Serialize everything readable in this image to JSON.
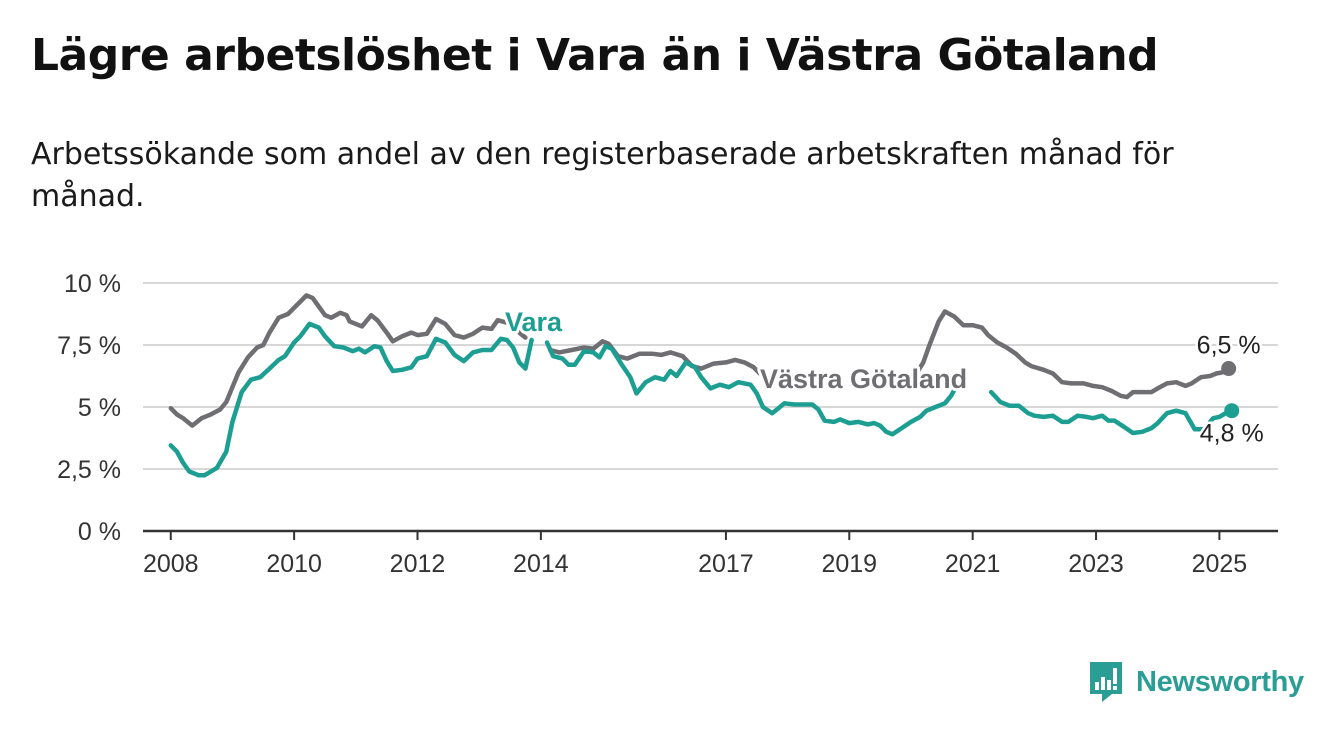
{
  "header": {
    "title": "Lägre arbetslöshet i Vara än i Västra Götaland",
    "subtitle": "Arbetssökande som andel av den registerbaserade arbetskraften månad för månad."
  },
  "logo": {
    "icon": "newsworthy-logo-icon",
    "text": "Newsworthy",
    "color": "#2a9d94"
  },
  "chart_data": {
    "type": "line",
    "title": "Lägre arbetslöshet i Vara än i Västra Götaland",
    "subtitle": "Arbetssökande som andel av den registerbaserade arbetskraften månad för månad.",
    "xlabel": "",
    "ylabel": "",
    "xlim": [
      2007.55,
      2025.95
    ],
    "ylim": [
      0,
      10
    ],
    "grid": true,
    "legend": "direct-labels",
    "y_ticks": [
      {
        "value": 0,
        "label": "0 %"
      },
      {
        "value": 2.5,
        "label": "2,5 %"
      },
      {
        "value": 5,
        "label": "5 %"
      },
      {
        "value": 7.5,
        "label": "7,5 %"
      },
      {
        "value": 10,
        "label": "10 %"
      }
    ],
    "x_ticks": [
      {
        "value": 2008,
        "label": "2008"
      },
      {
        "value": 2010,
        "label": "2010"
      },
      {
        "value": 2012,
        "label": "2012"
      },
      {
        "value": 2014,
        "label": "2014"
      },
      {
        "value": 2017,
        "label": "2017"
      },
      {
        "value": 2019,
        "label": "2019"
      },
      {
        "value": 2021,
        "label": "2021"
      },
      {
        "value": 2023,
        "label": "2023"
      },
      {
        "value": 2025,
        "label": "2025"
      }
    ],
    "series": [
      {
        "name": "Västra Götaland",
        "color": "#6f6e73",
        "end_label": "6,5 %",
        "points": [
          [
            2008.0,
            4.95
          ],
          [
            2008.1,
            4.7
          ],
          [
            2008.2,
            4.55
          ],
          [
            2008.35,
            4.25
          ],
          [
            2008.5,
            4.55
          ],
          [
            2008.65,
            4.7
          ],
          [
            2008.8,
            4.9
          ],
          [
            2008.9,
            5.2
          ],
          [
            2009.0,
            5.8
          ],
          [
            2009.1,
            6.4
          ],
          [
            2009.25,
            7.0
          ],
          [
            2009.4,
            7.4
          ],
          [
            2009.5,
            7.5
          ],
          [
            2009.6,
            8.0
          ],
          [
            2009.75,
            8.6
          ],
          [
            2009.9,
            8.75
          ],
          [
            2010.0,
            9.0
          ],
          [
            2010.1,
            9.25
          ],
          [
            2010.2,
            9.5
          ],
          [
            2010.3,
            9.4
          ],
          [
            2010.4,
            9.05
          ],
          [
            2010.5,
            8.7
          ],
          [
            2010.6,
            8.6
          ],
          [
            2010.75,
            8.8
          ],
          [
            2010.85,
            8.7
          ],
          [
            2010.9,
            8.45
          ],
          [
            2011.0,
            8.35
          ],
          [
            2011.1,
            8.25
          ],
          [
            2011.25,
            8.7
          ],
          [
            2011.35,
            8.5
          ],
          [
            2011.5,
            8.0
          ],
          [
            2011.6,
            7.65
          ],
          [
            2011.75,
            7.85
          ],
          [
            2011.9,
            8.0
          ],
          [
            2012.0,
            7.9
          ],
          [
            2012.15,
            7.95
          ],
          [
            2012.3,
            8.55
          ],
          [
            2012.45,
            8.35
          ],
          [
            2012.6,
            7.9
          ],
          [
            2012.75,
            7.8
          ],
          [
            2012.9,
            7.95
          ],
          [
            2013.05,
            8.2
          ],
          [
            2013.2,
            8.15
          ],
          [
            2013.3,
            8.5
          ],
          [
            2013.45,
            8.4
          ],
          [
            2013.55,
            8.3
          ],
          [
            2013.65,
            8.0
          ],
          [
            2013.75,
            7.8
          ],
          null,
          [
            2014.15,
            7.3
          ],
          [
            2014.3,
            7.2
          ],
          [
            2014.5,
            7.3
          ],
          [
            2014.7,
            7.4
          ],
          [
            2014.85,
            7.35
          ],
          [
            2015.0,
            7.65
          ],
          [
            2015.1,
            7.55
          ],
          [
            2015.25,
            7.05
          ],
          [
            2015.4,
            6.95
          ],
          [
            2015.6,
            7.15
          ],
          [
            2015.8,
            7.15
          ],
          [
            2015.95,
            7.1
          ],
          [
            2016.1,
            7.2
          ],
          [
            2016.3,
            7.05
          ],
          [
            2016.45,
            6.65
          ],
          [
            2016.6,
            6.55
          ],
          [
            2016.8,
            6.75
          ],
          [
            2017.0,
            6.8
          ],
          [
            2017.15,
            6.9
          ],
          [
            2017.3,
            6.8
          ],
          [
            2017.45,
            6.6
          ],
          [
            2017.55,
            6.35
          ],
          null,
          [
            2020.05,
            6.2
          ],
          [
            2020.2,
            6.8
          ],
          [
            2020.3,
            7.5
          ],
          [
            2020.45,
            8.45
          ],
          [
            2020.55,
            8.85
          ],
          [
            2020.7,
            8.65
          ],
          [
            2020.85,
            8.3
          ],
          [
            2021.0,
            8.3
          ],
          [
            2021.15,
            8.2
          ],
          [
            2021.25,
            7.9
          ],
          [
            2021.4,
            7.6
          ],
          [
            2021.55,
            7.4
          ],
          [
            2021.7,
            7.15
          ],
          [
            2021.85,
            6.8
          ],
          [
            2021.95,
            6.65
          ],
          [
            2022.15,
            6.5
          ],
          [
            2022.3,
            6.35
          ],
          [
            2022.45,
            6.0
          ],
          [
            2022.6,
            5.95
          ],
          [
            2022.8,
            5.95
          ],
          [
            2022.95,
            5.85
          ],
          [
            2023.1,
            5.8
          ],
          [
            2023.25,
            5.65
          ],
          [
            2023.4,
            5.45
          ],
          [
            2023.5,
            5.4
          ],
          [
            2023.6,
            5.6
          ],
          [
            2023.75,
            5.6
          ],
          [
            2023.9,
            5.6
          ],
          [
            2024.0,
            5.75
          ],
          [
            2024.15,
            5.95
          ],
          [
            2024.3,
            6.0
          ],
          [
            2024.45,
            5.85
          ],
          [
            2024.55,
            5.95
          ],
          [
            2024.7,
            6.2
          ],
          [
            2024.85,
            6.25
          ],
          [
            2024.95,
            6.35
          ],
          [
            2025.05,
            6.4
          ],
          [
            2025.15,
            6.55
          ]
        ]
      },
      {
        "name": "Vara",
        "color": "#1c9e92",
        "end_label": "4,8 %",
        "points": [
          [
            2008.0,
            3.45
          ],
          [
            2008.1,
            3.2
          ],
          [
            2008.2,
            2.75
          ],
          [
            2008.3,
            2.4
          ],
          [
            2008.45,
            2.25
          ],
          [
            2008.55,
            2.25
          ],
          [
            2008.65,
            2.4
          ],
          [
            2008.75,
            2.55
          ],
          [
            2008.9,
            3.2
          ],
          [
            2009.0,
            4.4
          ],
          [
            2009.15,
            5.6
          ],
          [
            2009.3,
            6.1
          ],
          [
            2009.45,
            6.2
          ],
          [
            2009.6,
            6.55
          ],
          [
            2009.75,
            6.9
          ],
          [
            2009.85,
            7.05
          ],
          [
            2010.0,
            7.6
          ],
          [
            2010.1,
            7.85
          ],
          [
            2010.25,
            8.35
          ],
          [
            2010.4,
            8.2
          ],
          [
            2010.5,
            7.85
          ],
          [
            2010.65,
            7.45
          ],
          [
            2010.8,
            7.4
          ],
          [
            2010.95,
            7.25
          ],
          [
            2011.05,
            7.35
          ],
          [
            2011.15,
            7.2
          ],
          [
            2011.3,
            7.45
          ],
          [
            2011.4,
            7.4
          ],
          [
            2011.5,
            6.85
          ],
          [
            2011.6,
            6.45
          ],
          [
            2011.75,
            6.5
          ],
          [
            2011.9,
            6.6
          ],
          [
            2012.0,
            6.95
          ],
          [
            2012.15,
            7.05
          ],
          [
            2012.3,
            7.75
          ],
          [
            2012.45,
            7.6
          ],
          [
            2012.6,
            7.1
          ],
          [
            2012.75,
            6.85
          ],
          [
            2012.9,
            7.2
          ],
          [
            2013.05,
            7.3
          ],
          [
            2013.2,
            7.3
          ],
          [
            2013.35,
            7.75
          ],
          [
            2013.45,
            7.7
          ],
          [
            2013.55,
            7.4
          ],
          [
            2013.65,
            6.8
          ],
          [
            2013.75,
            6.55
          ],
          [
            2013.85,
            7.7
          ],
          null,
          [
            2014.1,
            7.6
          ],
          [
            2014.2,
            7.05
          ],
          [
            2014.35,
            6.95
          ],
          [
            2014.45,
            6.7
          ],
          [
            2014.55,
            6.7
          ],
          [
            2014.7,
            7.25
          ],
          [
            2014.85,
            7.2
          ],
          [
            2014.95,
            7.0
          ],
          [
            2015.05,
            7.45
          ],
          [
            2015.15,
            7.35
          ],
          [
            2015.3,
            6.75
          ],
          [
            2015.45,
            6.2
          ],
          [
            2015.55,
            5.55
          ],
          [
            2015.7,
            6.0
          ],
          [
            2015.85,
            6.2
          ],
          [
            2016.0,
            6.1
          ],
          [
            2016.1,
            6.45
          ],
          [
            2016.2,
            6.25
          ],
          [
            2016.35,
            6.8
          ],
          [
            2016.5,
            6.6
          ],
          [
            2016.6,
            6.2
          ],
          [
            2016.75,
            5.75
          ],
          [
            2016.9,
            5.9
          ],
          [
            2017.05,
            5.8
          ],
          [
            2017.2,
            6.0
          ],
          [
            2017.3,
            5.95
          ],
          [
            2017.4,
            5.9
          ],
          [
            2017.5,
            5.55
          ],
          [
            2017.6,
            5.0
          ],
          [
            2017.75,
            4.75
          ],
          [
            2017.85,
            4.95
          ],
          [
            2017.95,
            5.15
          ],
          [
            2018.1,
            5.1
          ],
          [
            2018.25,
            5.1
          ],
          [
            2018.4,
            5.1
          ],
          [
            2018.5,
            4.9
          ],
          [
            2018.6,
            4.45
          ],
          [
            2018.75,
            4.4
          ],
          [
            2018.85,
            4.5
          ],
          [
            2019.0,
            4.35
          ],
          [
            2019.15,
            4.4
          ],
          [
            2019.3,
            4.3
          ],
          [
            2019.4,
            4.35
          ],
          [
            2019.5,
            4.25
          ],
          [
            2019.6,
            4.0
          ],
          [
            2019.7,
            3.9
          ],
          [
            2019.85,
            4.15
          ],
          [
            2020.0,
            4.4
          ],
          [
            2020.15,
            4.6
          ],
          [
            2020.25,
            4.85
          ],
          [
            2020.4,
            5.0
          ],
          [
            2020.55,
            5.15
          ],
          [
            2020.65,
            5.45
          ],
          [
            2020.75,
            5.9
          ],
          null,
          [
            2021.3,
            5.6
          ],
          [
            2021.45,
            5.2
          ],
          [
            2021.6,
            5.05
          ],
          [
            2021.75,
            5.05
          ],
          [
            2021.9,
            4.75
          ],
          [
            2022.0,
            4.65
          ],
          [
            2022.15,
            4.6
          ],
          [
            2022.3,
            4.65
          ],
          [
            2022.45,
            4.4
          ],
          [
            2022.55,
            4.4
          ],
          [
            2022.7,
            4.65
          ],
          [
            2022.85,
            4.6
          ],
          [
            2022.95,
            4.55
          ],
          [
            2023.1,
            4.65
          ],
          [
            2023.2,
            4.45
          ],
          [
            2023.3,
            4.45
          ],
          [
            2023.45,
            4.2
          ],
          [
            2023.6,
            3.95
          ],
          [
            2023.75,
            4.0
          ],
          [
            2023.9,
            4.15
          ],
          [
            2024.0,
            4.35
          ],
          [
            2024.15,
            4.75
          ],
          [
            2024.3,
            4.85
          ],
          [
            2024.45,
            4.75
          ],
          [
            2024.6,
            4.1
          ],
          [
            2024.75,
            4.1
          ],
          [
            2024.9,
            4.55
          ],
          [
            2025.0,
            4.6
          ],
          [
            2025.1,
            4.75
          ],
          [
            2025.2,
            4.85
          ]
        ]
      }
    ]
  }
}
